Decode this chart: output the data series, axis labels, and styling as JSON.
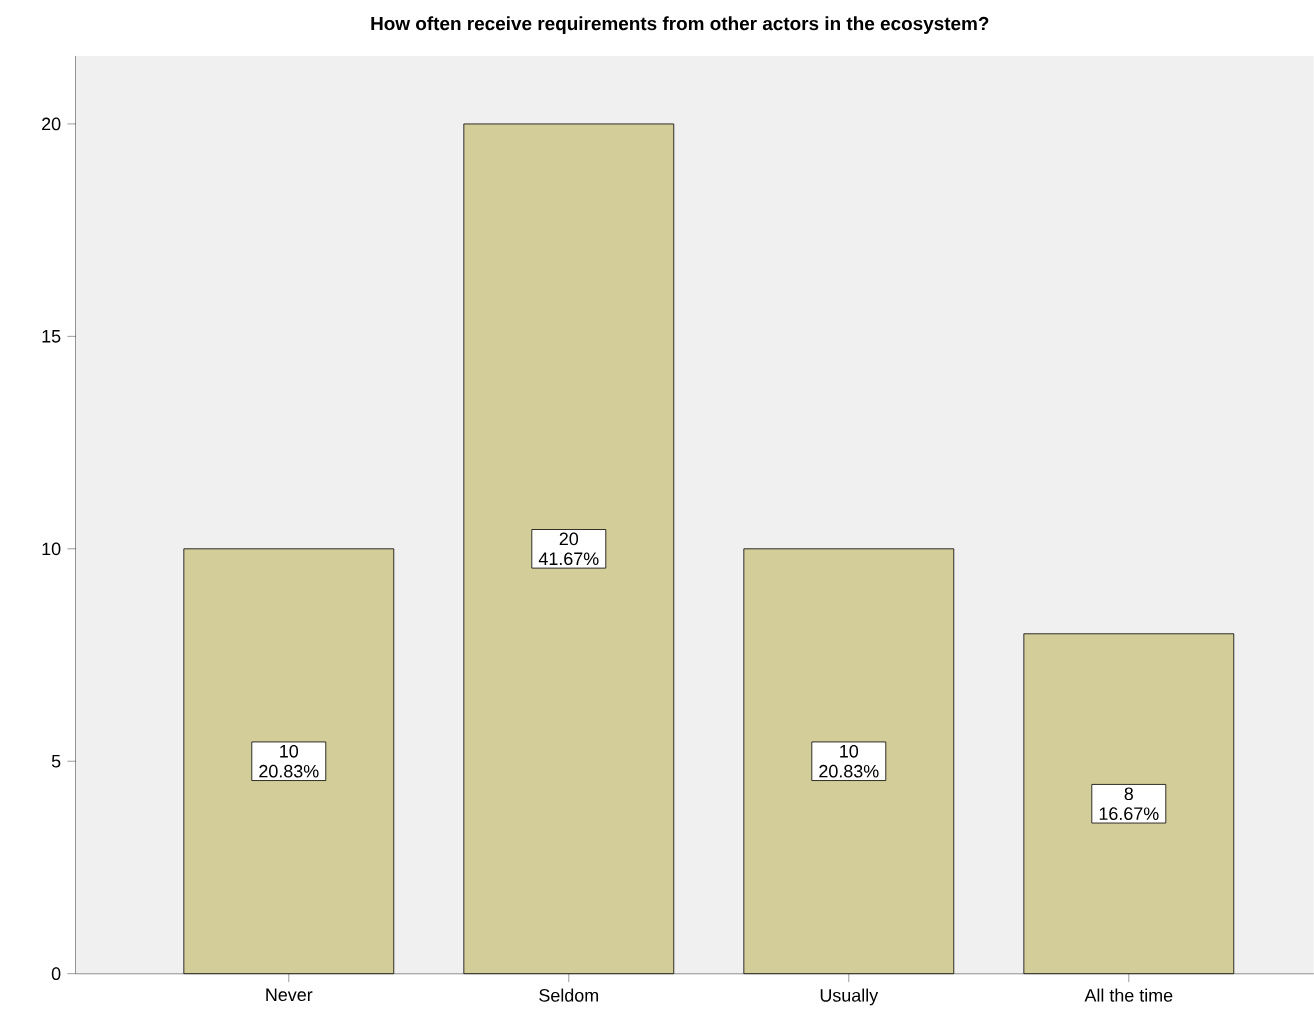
{
  "chart_data": {
    "type": "bar",
    "title": "How often receive requirements from other actors in the ecosystem?",
    "categories": [
      "Never",
      "Seldom",
      "Usually",
      "All the time"
    ],
    "values": [
      10,
      20,
      10,
      8
    ],
    "value_labels": [
      "10 20.83%",
      "20 41.67%",
      "10 20.83%",
      "8 16.67%"
    ],
    "color": "#d3cd99",
    "ylim": [
      0,
      21.6
    ],
    "yticks": [
      0,
      5,
      10,
      15,
      20
    ]
  }
}
